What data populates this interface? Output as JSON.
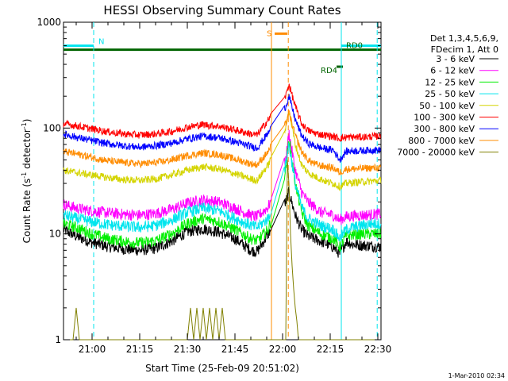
{
  "chart_data": {
    "type": "line",
    "title": "HESSI Observing Summary Count Rates",
    "xlabel": "Start Time (25-Feb-09 20:51:02)",
    "ylabel_main": "Count Rate (s",
    "ylabel_sup1": "-1",
    "ylabel_mid": " detector",
    "ylabel_sup2": "-1",
    "ylabel_end": ")",
    "x_unit": "minutes",
    "x_range": [
      291,
      391
    ],
    "y_scale": "log",
    "y_range": [
      1,
      1000
    ],
    "x_ticks": [
      {
        "value": 300,
        "label": "21:00"
      },
      {
        "value": 315,
        "label": "21:15"
      },
      {
        "value": 330,
        "label": "21:30"
      },
      {
        "value": 345,
        "label": "21:45"
      },
      {
        "value": 360,
        "label": "22:00"
      },
      {
        "value": 375,
        "label": "22:15"
      },
      {
        "value": 390,
        "label": "22:30"
      }
    ],
    "y_ticks": [
      {
        "value": 1,
        "label": "1"
      },
      {
        "value": 10,
        "label": "10"
      },
      {
        "value": 100,
        "label": "100"
      },
      {
        "value": 1000,
        "label": "1000"
      }
    ],
    "legend_header": [
      "Det 1,3,4,5,6,9,",
      "FDecim 1, Att 0"
    ],
    "legend_position": "right",
    "timestamp": "1-Mar-2010 02:34",
    "flags": [
      {
        "label": "N",
        "color": "#00e5ee",
        "y": 600,
        "segments": [
          [
            291,
            300.5
          ],
          [
            378.5,
            391
          ]
        ],
        "label_x": 302
      },
      {
        "label": "S",
        "color": "#ff8c00",
        "y": 780,
        "segments": [
          [
            357.5,
            361.5
          ]
        ],
        "label_x": 355
      },
      {
        "label": "RD0",
        "color": "#006400",
        "y": 550,
        "segments": [
          [
            291,
            391
          ]
        ],
        "label_x": 380
      },
      {
        "label": "RD4",
        "color": "#006400",
        "y": 380,
        "segments": [
          [
            377,
            379
          ]
        ],
        "label_x": 372
      }
    ],
    "vertical_lines": [
      {
        "x": 300.5,
        "color": "#00e5ee",
        "style": "dashed"
      },
      {
        "x": 378.5,
        "color": "#00e5ee",
        "style": "solid"
      },
      {
        "x": 389.8,
        "color": "#00e5ee",
        "style": "dashed"
      },
      {
        "x": 356.5,
        "color": "#ff8c00",
        "style": "solid"
      },
      {
        "x": 361.8,
        "color": "#ff8c00",
        "style": "dashed"
      }
    ],
    "series": [
      {
        "name": "3 - 6 keV",
        "color": "#000000",
        "x": [
          291,
          295,
          300,
          305,
          310,
          315,
          320,
          325,
          330,
          335,
          340,
          345,
          350,
          352,
          355.5,
          361,
          362,
          364,
          366,
          368,
          370,
          372,
          374,
          376,
          378,
          380,
          382,
          385,
          388,
          391
        ],
        "y": [
          11,
          9.5,
          8.3,
          7.6,
          7.2,
          7.0,
          7.3,
          8.5,
          10.5,
          11.2,
          10.4,
          9.0,
          7.0,
          6.8,
          10,
          20,
          25,
          15,
          11,
          9.5,
          9.0,
          8.5,
          8.0,
          7.5,
          6.5,
          8.5,
          8.0,
          7.8,
          7.7,
          7.5
        ]
      },
      {
        "name": "6 - 12 keV",
        "color": "#ff00ff",
        "x": [
          291,
          295,
          300,
          305,
          310,
          315,
          320,
          325,
          330,
          335,
          340,
          345,
          350,
          352,
          355.5,
          361,
          362,
          364,
          366,
          368,
          370,
          372,
          374,
          376,
          378,
          380,
          382,
          385,
          388,
          391
        ],
        "y": [
          19,
          17.5,
          16.5,
          15.8,
          15.3,
          15.0,
          15.6,
          17.0,
          19.5,
          21.0,
          20.0,
          17.5,
          15.0,
          14.5,
          18,
          50,
          90,
          40,
          25,
          20,
          18,
          16,
          15.5,
          15,
          13.5,
          14.5,
          14.8,
          15,
          15.2,
          15.5
        ]
      },
      {
        "name": "12 - 25 keV",
        "color": "#00ee00",
        "x": [
          291,
          295,
          300,
          305,
          310,
          315,
          320,
          325,
          330,
          335,
          340,
          345,
          350,
          352,
          355.5,
          361,
          362,
          364,
          366,
          368,
          370,
          372,
          374,
          376,
          378,
          380,
          382,
          385,
          388,
          391
        ],
        "y": [
          12.5,
          11.5,
          10.0,
          9.0,
          8.5,
          8.2,
          8.6,
          10.0,
          12.5,
          14.0,
          13.0,
          11.0,
          9.0,
          8.6,
          11,
          40,
          80,
          30,
          16,
          12,
          11,
          10,
          9.5,
          9,
          7.5,
          9.5,
          9.8,
          10,
          10,
          10
        ]
      },
      {
        "name": "25 - 50 keV",
        "color": "#00e5ee",
        "x": [
          291,
          295,
          300,
          305,
          310,
          315,
          320,
          325,
          330,
          335,
          340,
          345,
          350,
          352,
          355.5,
          361,
          362,
          364,
          366,
          368,
          370,
          372,
          374,
          376,
          378,
          380,
          382,
          385,
          388,
          391
        ],
        "y": [
          15,
          14.0,
          13.0,
          12.2,
          11.8,
          11.5,
          12.0,
          13.5,
          16.0,
          17.5,
          16.5,
          14.0,
          12.0,
          11.5,
          14,
          45,
          70,
          30,
          18,
          14,
          13,
          12,
          11.5,
          11,
          9.0,
          11.0,
          11.5,
          12,
          12.5,
          12.5
        ]
      },
      {
        "name": "50 - 100 keV",
        "color": "#d4d400",
        "x": [
          291,
          295,
          300,
          305,
          310,
          315,
          320,
          325,
          330,
          335,
          340,
          345,
          350,
          352,
          355.5,
          361,
          362,
          364,
          366,
          368,
          370,
          372,
          374,
          376,
          378,
          380,
          382,
          385,
          388,
          391
        ],
        "y": [
          40,
          38,
          36,
          34,
          32.5,
          32,
          33,
          36,
          40,
          43,
          41,
          37,
          33,
          32,
          45,
          100,
          150,
          70,
          45,
          38,
          35,
          33,
          31,
          30,
          28,
          30,
          30.5,
          31,
          31.5,
          32
        ]
      },
      {
        "name": "100 - 300 keV",
        "color": "#ff0000",
        "x": [
          291,
          295,
          300,
          305,
          310,
          315,
          320,
          325,
          330,
          335,
          340,
          345,
          350,
          352,
          355.5,
          361,
          362,
          364,
          366,
          368,
          370,
          372,
          374,
          376,
          378,
          380,
          382,
          385,
          388,
          391
        ],
        "y": [
          110,
          105,
          98,
          92,
          88,
          86,
          88,
          93,
          102,
          108,
          104,
          96,
          88,
          86,
          120,
          200,
          260,
          160,
          110,
          95,
          90,
          87,
          85,
          83,
          80,
          82,
          82,
          82,
          83,
          84
        ]
      },
      {
        "name": "300 - 800 keV",
        "color": "#0000ff",
        "x": [
          291,
          295,
          300,
          305,
          310,
          315,
          320,
          325,
          330,
          335,
          340,
          345,
          350,
          352,
          355.5,
          361,
          362,
          364,
          366,
          368,
          370,
          372,
          374,
          376,
          378,
          380,
          382,
          385,
          388,
          391
        ],
        "y": [
          88,
          82,
          76,
          71,
          68,
          66,
          68,
          72,
          79,
          84,
          81,
          74,
          67,
          65,
          90,
          160,
          200,
          120,
          85,
          72,
          68,
          65,
          63,
          62,
          50,
          60,
          61,
          61,
          62,
          62
        ]
      },
      {
        "name": "800 - 7000 keV",
        "color": "#ff8c00",
        "x": [
          291,
          295,
          300,
          305,
          310,
          315,
          320,
          325,
          330,
          335,
          340,
          345,
          350,
          352,
          355.5,
          361,
          362,
          364,
          366,
          368,
          370,
          372,
          374,
          376,
          378,
          380,
          382,
          385,
          388,
          391
        ],
        "y": [
          60,
          57,
          53,
          49,
          47,
          46,
          47,
          50,
          55,
          58,
          56,
          51,
          46,
          45,
          60,
          110,
          140,
          85,
          60,
          50,
          46,
          44,
          43,
          42,
          38,
          41,
          41,
          41.5,
          42,
          42
        ]
      },
      {
        "name": "7000 - 20000 keV",
        "color": "#808000",
        "x": [
          291,
          294,
          295,
          296,
          297,
          330,
          331,
          332,
          333,
          334,
          335,
          336,
          337,
          338,
          339,
          340,
          341,
          342,
          343,
          361,
          361.5,
          362,
          362.5,
          363,
          363.5,
          364,
          364.5,
          365,
          391
        ],
        "y": [
          1,
          1,
          2,
          1,
          1,
          1,
          2,
          1,
          2,
          1,
          2,
          1,
          2,
          1,
          2,
          1,
          2,
          1,
          1,
          1,
          50,
          30,
          10,
          5,
          3,
          2,
          1.5,
          1,
          1
        ]
      }
    ]
  }
}
